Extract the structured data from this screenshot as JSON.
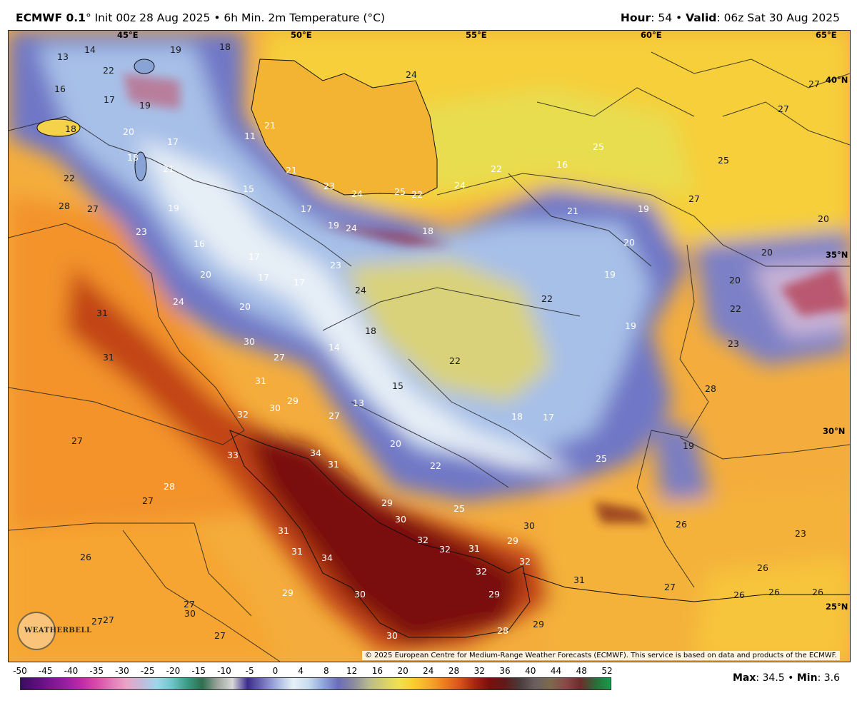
{
  "header": {
    "model": "ECMWF 0.1",
    "init": "° Init 00z 28 Aug 2025 • 6h Min. 2m Temperature (°C)",
    "hour_label": "Hour",
    "hour_value": ": 54 • ",
    "valid_label": "Valid",
    "valid_value": ": 06z Sat 30 Aug 2025"
  },
  "map": {
    "longitude_labels": [
      "45°E",
      "50°E",
      "55°E",
      "60°E",
      "65°E"
    ],
    "latitude_labels": [
      "40°N",
      "35°N",
      "30°N",
      "25°N"
    ],
    "values": [
      {
        "text": "13"
      },
      {
        "text": "14"
      },
      {
        "text": "19"
      },
      {
        "text": "18"
      },
      {
        "text": "22"
      },
      {
        "text": "16"
      },
      {
        "text": "17"
      },
      {
        "text": "19"
      },
      {
        "text": "21"
      },
      {
        "text": "18"
      },
      {
        "text": "20"
      },
      {
        "text": "17"
      },
      {
        "text": "11"
      },
      {
        "text": "18"
      },
      {
        "text": "21"
      },
      {
        "text": "22"
      },
      {
        "text": "21"
      },
      {
        "text": "23"
      },
      {
        "text": "24"
      },
      {
        "text": "25"
      },
      {
        "text": "22"
      },
      {
        "text": "24"
      },
      {
        "text": "22"
      },
      {
        "text": "16"
      },
      {
        "text": "25"
      },
      {
        "text": "25"
      },
      {
        "text": "27"
      },
      {
        "text": "27"
      },
      {
        "text": "24"
      },
      {
        "text": "15"
      },
      {
        "text": "28"
      },
      {
        "text": "27"
      },
      {
        "text": "19"
      },
      {
        "text": "17"
      },
      {
        "text": "19"
      },
      {
        "text": "24"
      },
      {
        "text": "19"
      },
      {
        "text": "21"
      },
      {
        "text": "18"
      },
      {
        "text": "27"
      },
      {
        "text": "23"
      },
      {
        "text": "16"
      },
      {
        "text": "17"
      },
      {
        "text": "23"
      },
      {
        "text": "20"
      },
      {
        "text": "20"
      },
      {
        "text": "20"
      },
      {
        "text": "20"
      },
      {
        "text": "20"
      },
      {
        "text": "17"
      },
      {
        "text": "17"
      },
      {
        "text": "24"
      },
      {
        "text": "19"
      },
      {
        "text": "22"
      },
      {
        "text": "24"
      },
      {
        "text": "20"
      },
      {
        "text": "31"
      },
      {
        "text": "18"
      },
      {
        "text": "19"
      },
      {
        "text": "22"
      },
      {
        "text": "23"
      },
      {
        "text": "30"
      },
      {
        "text": "14"
      },
      {
        "text": "27"
      },
      {
        "text": "31"
      },
      {
        "text": "22"
      },
      {
        "text": "31"
      },
      {
        "text": "15"
      },
      {
        "text": "28"
      },
      {
        "text": "29"
      },
      {
        "text": "13"
      },
      {
        "text": "30"
      },
      {
        "text": "27"
      },
      {
        "text": "32"
      },
      {
        "text": "18"
      },
      {
        "text": "17"
      },
      {
        "text": "30°N"
      },
      {
        "text": "27"
      },
      {
        "text": "33"
      },
      {
        "text": "34"
      },
      {
        "text": "20"
      },
      {
        "text": "19"
      },
      {
        "text": "31"
      },
      {
        "text": "22"
      },
      {
        "text": "25"
      },
      {
        "text": "28"
      },
      {
        "text": "27"
      },
      {
        "text": "29"
      },
      {
        "text": "25"
      },
      {
        "text": "30"
      },
      {
        "text": "30"
      },
      {
        "text": "26"
      },
      {
        "text": "23"
      },
      {
        "text": "31"
      },
      {
        "text": "32"
      },
      {
        "text": "32"
      },
      {
        "text": "31"
      },
      {
        "text": "29"
      },
      {
        "text": "26"
      },
      {
        "text": "31"
      },
      {
        "text": "34"
      },
      {
        "text": "32"
      },
      {
        "text": "32"
      },
      {
        "text": "26"
      },
      {
        "text": "31"
      },
      {
        "text": "27"
      },
      {
        "text": "26"
      },
      {
        "text": "26"
      },
      {
        "text": "26"
      },
      {
        "text": "29"
      },
      {
        "text": "30"
      },
      {
        "text": "29"
      },
      {
        "text": "27"
      },
      {
        "text": "30"
      },
      {
        "text": "27"
      },
      {
        "text": "27"
      },
      {
        "text": "29"
      },
      {
        "text": "28"
      },
      {
        "text": "30"
      },
      {
        "text": "27"
      }
    ],
    "copyright": "© 2025 European Centre for Medium-Range Weather Forecasts (ECMWF). This service is based on data and products of the ECMWF.",
    "logo_text": "WEATHERBELL"
  },
  "colorbar": {
    "ticks": [
      "-50",
      "-45",
      "-40",
      "-35",
      "-30",
      "-25",
      "-20",
      "-15",
      "-10",
      "-5",
      "0",
      "4",
      "8",
      "12",
      "16",
      "20",
      "24",
      "28",
      "32",
      "36",
      "40",
      "44",
      "48",
      "52"
    ],
    "colors": [
      "#3a0d5c",
      "#5a0f7a",
      "#7a1690",
      "#9a1ea2",
      "#c02aa6",
      "#d94aa8",
      "#e27ab8",
      "#e9a5c8",
      "#c5b9d9",
      "#9fd6ea",
      "#6fc4c9",
      "#3a9d86",
      "#2f6e4e",
      "#9aa49b",
      "#d7d7d7",
      "#3c2c8a",
      "#7270b9",
      "#a9b7e3",
      "#e7f0f6",
      "#c9ddf0",
      "#8fa6d9",
      "#6b6db8",
      "#8a8a9f",
      "#b7b98e",
      "#d6cf6b",
      "#f1e14f",
      "#f8cd2d",
      "#f7aa2a",
      "#ef7d1f",
      "#d9541c",
      "#a82512",
      "#7a0f0d",
      "#5f1b1a",
      "#4b3b3b",
      "#6a5f5f",
      "#7b6a4d",
      "#8a4a4a",
      "#6d2c2c",
      "#2d6b3a",
      "#119f4a"
    ],
    "max_label": "Max",
    "max_value": ": 34.5 • ",
    "min_label": "Min",
    "min_value": ": 3.6"
  }
}
